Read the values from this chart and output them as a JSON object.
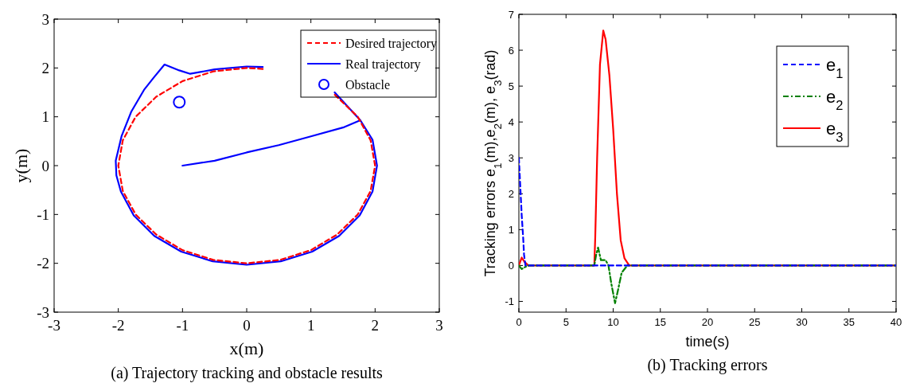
{
  "chart_data": [
    {
      "type": "line",
      "xlabel": "x(m)",
      "ylabel": "y(m)",
      "xlim": [
        -3,
        3
      ],
      "ylim": [
        -3,
        3
      ],
      "xticks": [
        -3,
        -2,
        -1,
        0,
        1,
        2,
        3
      ],
      "yticks": [
        -3,
        -2,
        -1,
        0,
        1,
        2,
        3
      ],
      "grid": false,
      "legend": "top right",
      "annotations": [
        "(a) Trajectory tracking and obstacle results"
      ],
      "series": [
        {
          "name": "Desired trajectory",
          "color": "#ff0000",
          "line_style": "dashed",
          "marker": "none",
          "x": [
            2,
            1.93,
            1.73,
            1.35,
            1,
            0.25,
            0,
            -0.52,
            -1,
            -1.41,
            -1.73,
            -1.93,
            -2,
            -1.93,
            -1.73,
            -1.41,
            -1,
            -0.52,
            0,
            0.52,
            1,
            1.41,
            1.73,
            1.93,
            2
          ],
          "values": [
            0,
            0.52,
            1,
            1.48,
            null,
            1.98,
            2,
            1.93,
            1.73,
            1.41,
            1,
            0.52,
            0,
            -0.52,
            -1,
            -1.41,
            -1.73,
            -1.93,
            -2,
            -1.93,
            -1.73,
            -1.41,
            -1,
            -0.52,
            0
          ]
        },
        {
          "name": "Real trajectory",
          "color": "#0000ff",
          "line_style": "solid",
          "marker": "none",
          "x": [
            -1,
            -0.5,
            0,
            0.5,
            1,
            1.5,
            1.77,
            1.37,
            1,
            0.25,
            0,
            -0.5,
            -0.88,
            -1.05,
            -1.28,
            -1.45,
            -1.6,
            -1.8,
            -1.95,
            -2.04,
            -2.03,
            -1.96,
            -1.76,
            -1.44,
            -1.02,
            -0.53,
            0,
            0.53,
            1.02,
            1.44,
            1.76,
            1.96,
            2.03,
            1.96,
            1.77
          ],
          "values": [
            0,
            0.1,
            0.27,
            0.42,
            0.6,
            0.78,
            0.93,
            1.5,
            null,
            2.02,
            2.03,
            1.97,
            1.88,
            1.95,
            2.07,
            1.8,
            1.55,
            1.1,
            0.6,
            0.1,
            -0.2,
            -0.53,
            -1.02,
            -1.44,
            -1.76,
            -1.96,
            -2.03,
            -1.96,
            -1.76,
            -1.44,
            -1.02,
            -0.53,
            0,
            0.53,
            0.93
          ]
        },
        {
          "name": "Obstacle",
          "type": "scatter",
          "color": "#0000ff",
          "marker": "circle",
          "x": [
            -1.05
          ],
          "values": [
            1.3
          ]
        }
      ]
    },
    {
      "type": "line",
      "xlabel": "time(s)",
      "ylabel": "Tracking errors e$_{1}$(m),e$_{2}$(m),  e$_{3}$(rad)",
      "xlim": [
        0,
        40
      ],
      "ylim": [
        -1.3,
        7
      ],
      "xticks": [
        0,
        5,
        10,
        15,
        20,
        25,
        30,
        35,
        40
      ],
      "yticks": [
        -1,
        0,
        1,
        2,
        3,
        4,
        5,
        6,
        7
      ],
      "grid": false,
      "legend": "top right",
      "annotations": [
        "(b) Tracking errors"
      ],
      "series": [
        {
          "name": "e$_{1}$",
          "color": "#0000ff",
          "line_style": "dashed",
          "marker": "none",
          "x": [
            0,
            0.15,
            0.3,
            0.45,
            0.55,
            0.7,
            40
          ],
          "values": [
            3,
            2.2,
            1.4,
            0.8,
            0.3,
            0,
            0
          ]
        },
        {
          "name": "e$_{2}$",
          "color": "#008000",
          "line_style": "dashdot",
          "marker": "none",
          "x": [
            0,
            0.3,
            0.6,
            1,
            8,
            8.2,
            8.4,
            8.7,
            9.2,
            9.5,
            9.8,
            10.2,
            10.5,
            10.9,
            11.5,
            40
          ],
          "values": [
            0,
            -0.1,
            -0.05,
            0,
            0,
            0.3,
            0.5,
            0.15,
            0.15,
            0,
            -0.5,
            -1.05,
            -0.7,
            -0.2,
            0,
            0
          ]
        },
        {
          "name": "e$_{3}$",
          "color": "#ff0000",
          "line_style": "solid",
          "marker": "none",
          "x": [
            0,
            0.3,
            0.6,
            1,
            8,
            8.1,
            8.3,
            8.6,
            8.95,
            9.2,
            9.6,
            10,
            10.4,
            10.8,
            11.2,
            11.7,
            40
          ],
          "values": [
            0,
            0.22,
            0.1,
            0,
            0,
            0.8,
            3,
            5.6,
            6.55,
            6.3,
            5.3,
            3.8,
            2,
            0.7,
            0.2,
            0,
            0
          ]
        }
      ]
    }
  ]
}
